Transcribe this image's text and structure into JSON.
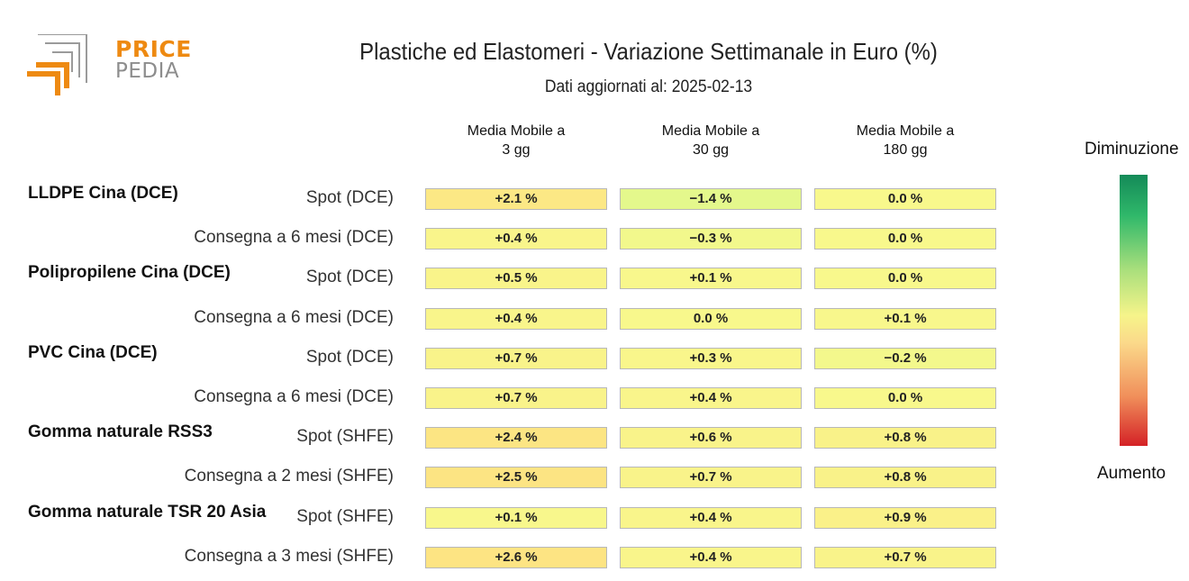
{
  "logo": {
    "line1": "PRICE",
    "line2": "PEDIA",
    "accent": "#ee8a12",
    "gray": "#8d8d8d"
  },
  "chart_data": {
    "type": "table",
    "title": "Plastiche ed Elastomeri - Variazione Settimanale in Euro (%)",
    "subtitle": "Dati aggiornati al: 2025-02-13",
    "columns": [
      "Media Mobile a\n3 gg",
      "Media Mobile a\n30 gg",
      "Media Mobile a\n180 gg"
    ],
    "groups": [
      {
        "name": "LLDPE Cina (DCE)",
        "rows": [
          {
            "label": "Spot (DCE)",
            "values": [
              2.1,
              -1.4,
              0.0
            ],
            "text": [
              "+2.1 %",
              "−1.4 %",
              "0.0 %"
            ]
          },
          {
            "label": "Consegna a 6 mesi (DCE)",
            "values": [
              0.4,
              -0.3,
              0.0
            ],
            "text": [
              "+0.4 %",
              "−0.3 %",
              "0.0 %"
            ]
          }
        ]
      },
      {
        "name": "Polipropilene Cina (DCE)",
        "rows": [
          {
            "label": "Spot (DCE)",
            "values": [
              0.5,
              0.1,
              0.0
            ],
            "text": [
              "+0.5 %",
              "+0.1 %",
              "0.0 %"
            ]
          },
          {
            "label": "Consegna a 6 mesi (DCE)",
            "values": [
              0.4,
              0.0,
              0.1
            ],
            "text": [
              "+0.4 %",
              "0.0 %",
              "+0.1 %"
            ]
          }
        ]
      },
      {
        "name": "PVC Cina (DCE)",
        "rows": [
          {
            "label": "Spot (DCE)",
            "values": [
              0.7,
              0.3,
              -0.2
            ],
            "text": [
              "+0.7 %",
              "+0.3 %",
              "−0.2 %"
            ]
          },
          {
            "label": "Consegna a 6 mesi (DCE)",
            "values": [
              0.7,
              0.4,
              0.0
            ],
            "text": [
              "+0.7 %",
              "+0.4 %",
              "0.0 %"
            ]
          }
        ]
      },
      {
        "name": "Gomma naturale RSS3",
        "rows": [
          {
            "label": "Spot (SHFE)",
            "values": [
              2.4,
              0.6,
              0.8
            ],
            "text": [
              "+2.4 %",
              "+0.6 %",
              "+0.8 %"
            ]
          },
          {
            "label": "Consegna a 2 mesi (SHFE)",
            "values": [
              2.5,
              0.7,
              0.8
            ],
            "text": [
              "+2.5 %",
              "+0.7 %",
              "+0.8 %"
            ]
          }
        ]
      },
      {
        "name": "Gomma naturale TSR 20 Asia",
        "rows": [
          {
            "label": "Spot (SHFE)",
            "values": [
              0.1,
              0.4,
              0.9
            ],
            "text": [
              "+0.1 %",
              "+0.4 %",
              "+0.9 %"
            ]
          },
          {
            "label": "Consegna a 3 mesi (SHFE)",
            "values": [
              2.6,
              0.4,
              0.7
            ],
            "text": [
              "+2.6 %",
              "+0.4 %",
              "+0.7 %"
            ]
          }
        ]
      }
    ],
    "color_scale": {
      "top_label": "Diminuzione",
      "bottom_label": "Aumento",
      "colors": [
        "#148a58",
        "#2fb86a",
        "#a9df7c",
        "#f6f48a",
        "#fbd98a",
        "#f08e5a",
        "#d42126"
      ]
    }
  }
}
